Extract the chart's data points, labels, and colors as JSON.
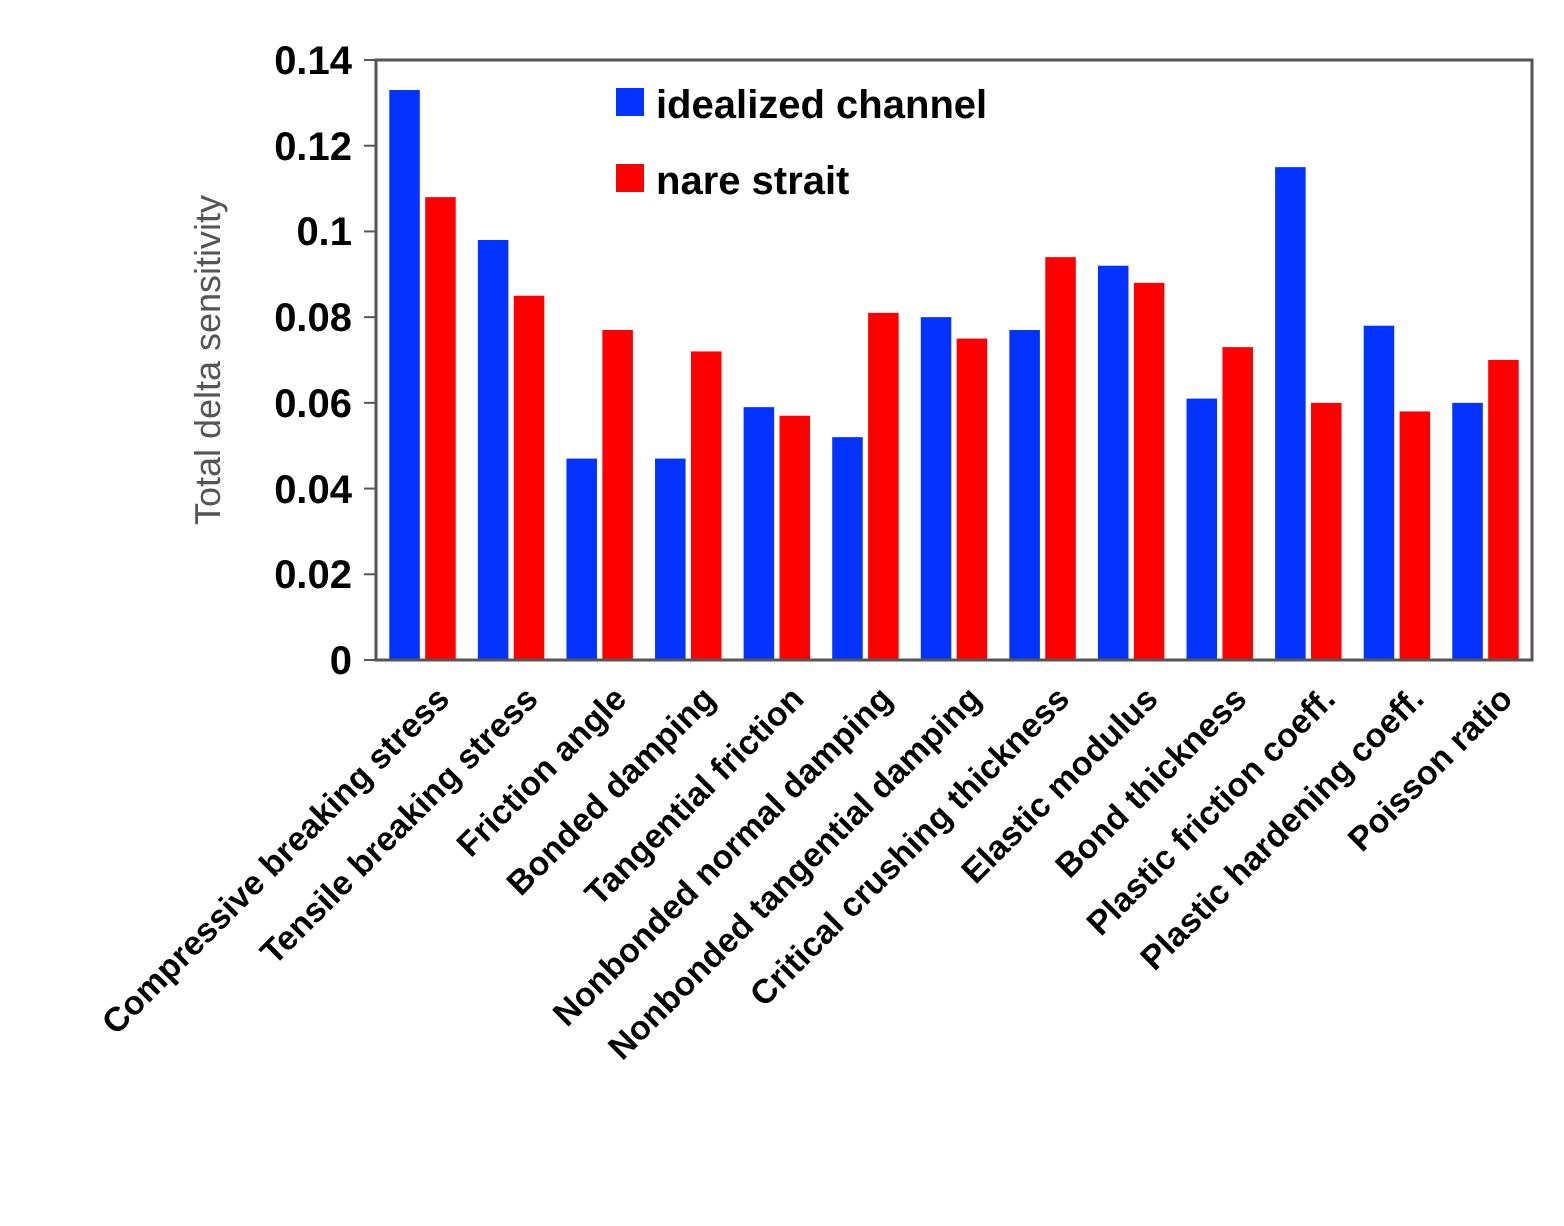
{
  "chart_data": {
    "type": "bar",
    "ylabel": "Total delta sensitivity",
    "categories": [
      "Compressive breaking stress",
      "Tensile breaking stress",
      "Friction angle",
      "Bonded damping",
      "Tangential friction",
      "Nonbonded normal damping",
      "Nonbonded tangential damping",
      "Critical crushing thickness",
      "Elastic modulus",
      "Bond thickness",
      "Plastic friction coeff.",
      "Plastic hardening coeff.",
      "Poisson ratio"
    ],
    "series": [
      {
        "name": "idealized channel",
        "color": "#0433ff",
        "values": [
          0.133,
          0.098,
          0.047,
          0.047,
          0.059,
          0.052,
          0.08,
          0.077,
          0.092,
          0.061,
          0.115,
          0.078,
          0.06
        ]
      },
      {
        "name": "nare strait",
        "color": "#ff0000",
        "values": [
          0.108,
          0.085,
          0.077,
          0.072,
          0.057,
          0.081,
          0.075,
          0.094,
          0.088,
          0.073,
          0.06,
          0.058,
          0.07
        ]
      }
    ],
    "ylim": [
      0,
      0.14
    ],
    "yticks": [
      0,
      0.02,
      0.04,
      0.06,
      0.08,
      0.1,
      0.12,
      0.14
    ],
    "grid": false,
    "legend": "top left"
  }
}
